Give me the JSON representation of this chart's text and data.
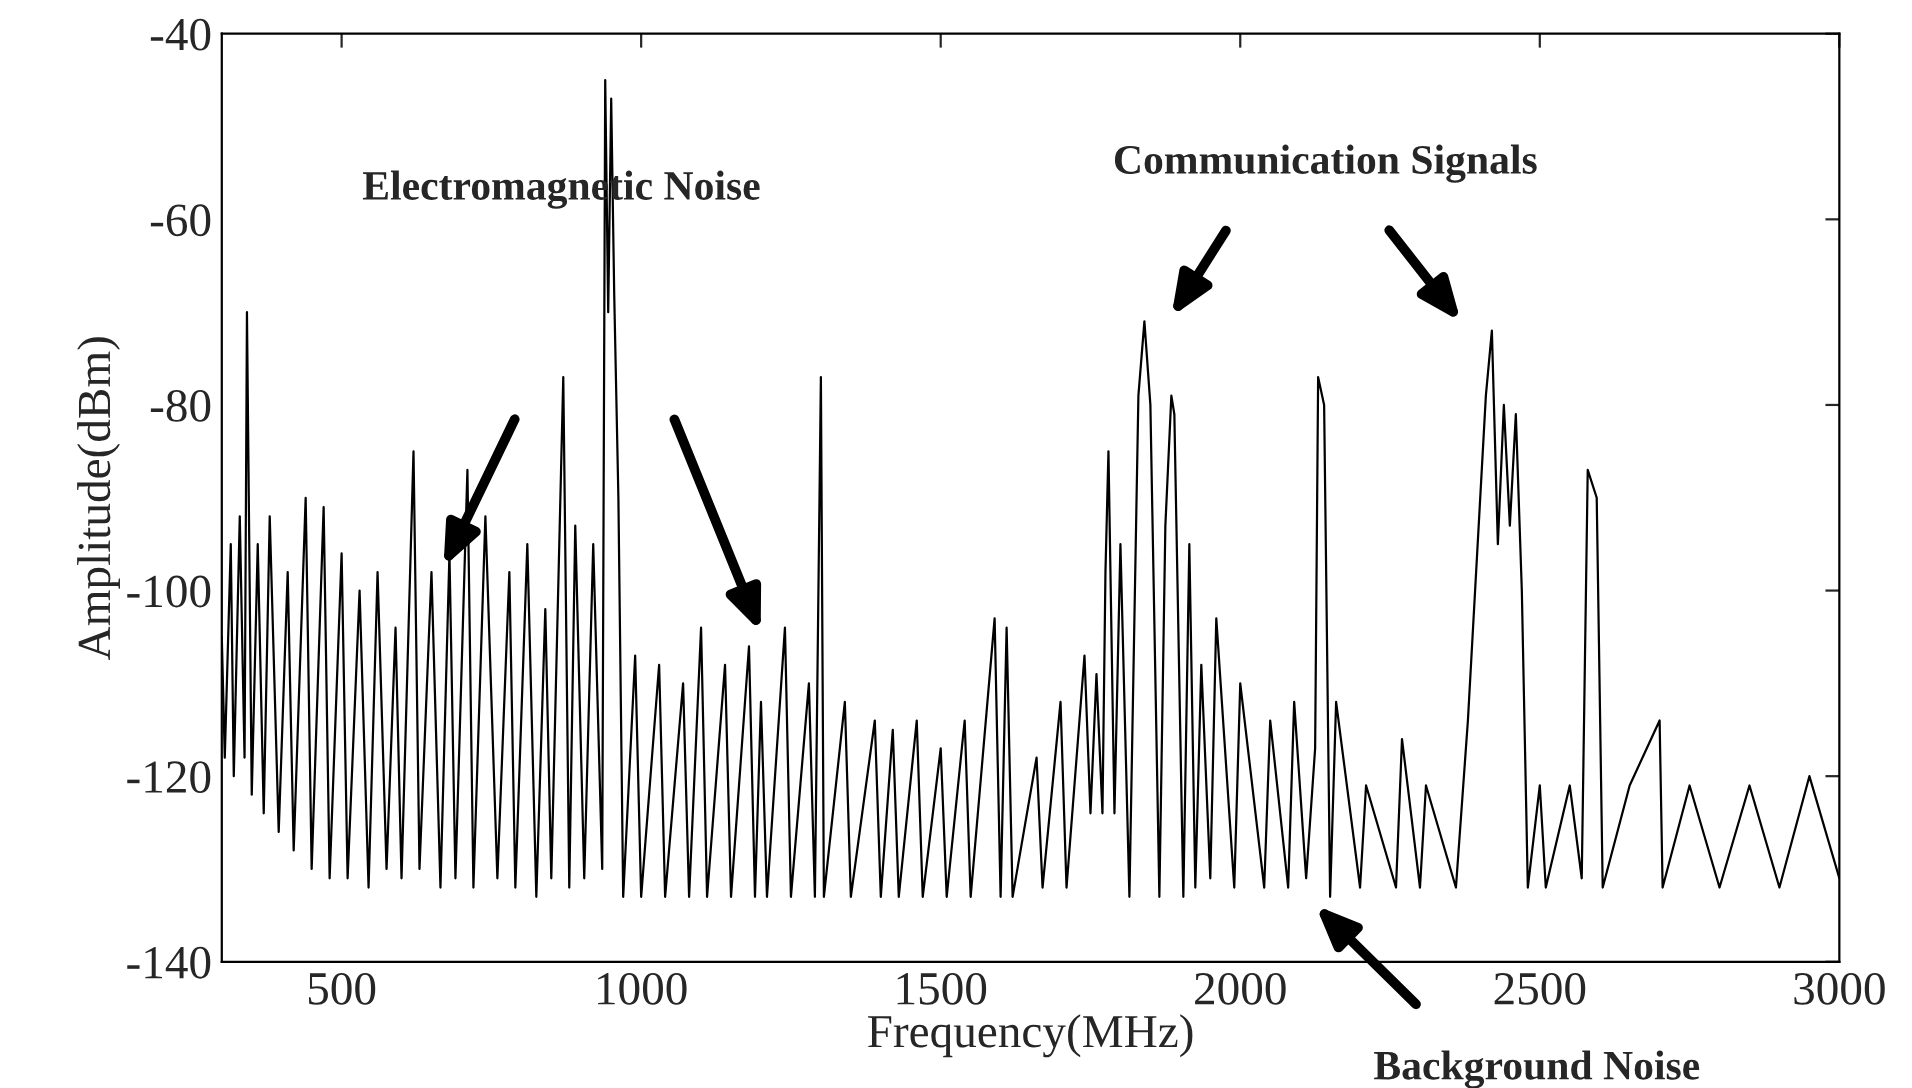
{
  "chart_data": {
    "type": "line",
    "xlabel": "Frequency(MHz)",
    "ylabel": "Amplitude(dBm)",
    "xlim": [
      300,
      3000
    ],
    "xticks": [
      500,
      1000,
      1500,
      2000,
      2500,
      3000
    ],
    "ylim": [
      -140,
      -40
    ],
    "yticks": [
      -140,
      -120,
      -100,
      -80,
      -60,
      -40
    ],
    "grid": false,
    "legend": false,
    "annotations": [
      "Electromagnetic Noise",
      "Communication Signals",
      "Background Noise"
    ],
    "series": [
      {
        "color": "#000000",
        "x": [
          300,
          305,
          315,
          320,
          330,
          338,
          342,
          350,
          360,
          370,
          380,
          395,
          410,
          420,
          440,
          450,
          470,
          480,
          500,
          510,
          530,
          545,
          560,
          575,
          590,
          600,
          620,
          630,
          650,
          665,
          680,
          690,
          710,
          720,
          740,
          760,
          780,
          790,
          810,
          825,
          840,
          850,
          870,
          880,
          890,
          905,
          920,
          935,
          940,
          945,
          950,
          955,
          962,
          970,
          990,
          1000,
          1030,
          1040,
          1070,
          1080,
          1100,
          1110,
          1140,
          1150,
          1180,
          1190,
          1200,
          1210,
          1240,
          1250,
          1280,
          1290,
          1300,
          1305,
          1340,
          1350,
          1390,
          1400,
          1420,
          1430,
          1460,
          1470,
          1500,
          1510,
          1540,
          1550,
          1590,
          1600,
          1610,
          1620,
          1660,
          1670,
          1700,
          1710,
          1740,
          1750,
          1760,
          1770,
          1775,
          1780,
          1790,
          1800,
          1815,
          1830,
          1840,
          1850,
          1865,
          1875,
          1885,
          1890,
          1905,
          1915,
          1925,
          1935,
          1950,
          1960,
          1990,
          2000,
          2040,
          2050,
          2080,
          2090,
          2110,
          2125,
          2130,
          2140,
          2150,
          2160,
          2200,
          2210,
          2260,
          2270,
          2300,
          2310,
          2360,
          2380,
          2410,
          2420,
          2430,
          2440,
          2450,
          2460,
          2470,
          2480,
          2500,
          2510,
          2550,
          2570,
          2580,
          2595,
          2605,
          2650,
          2700,
          2705,
          2750,
          2800,
          2850,
          2900,
          2950,
          3000
        ],
        "values": [
          -105,
          -118,
          -95,
          -120,
          -92,
          -118,
          -70,
          -122,
          -95,
          -124,
          -92,
          -126,
          -98,
          -128,
          -90,
          -130,
          -91,
          -131,
          -96,
          -131,
          -100,
          -132,
          -98,
          -130,
          -104,
          -131,
          -85,
          -130,
          -98,
          -132,
          -96,
          -131,
          -87,
          -132,
          -92,
          -131,
          -98,
          -132,
          -95,
          -133,
          -102,
          -131,
          -77,
          -132,
          -93,
          -131,
          -95,
          -130,
          -45,
          -70,
          -47,
          -68,
          -90,
          -133,
          -107,
          -133,
          -108,
          -133,
          -110,
          -133,
          -104,
          -133,
          -108,
          -133,
          -106,
          -133,
          -112,
          -133,
          -104,
          -133,
          -110,
          -133,
          -77,
          -133,
          -112,
          -133,
          -114,
          -133,
          -115,
          -133,
          -114,
          -133,
          -117,
          -133,
          -114,
          -133,
          -103,
          -133,
          -104,
          -133,
          -118,
          -132,
          -112,
          -132,
          -107,
          -124,
          -109,
          -124,
          -98,
          -85,
          -124,
          -95,
          -133,
          -79,
          -71,
          -80,
          -133,
          -93,
          -79,
          -81,
          -133,
          -95,
          -132,
          -108,
          -131,
          -103,
          -132,
          -110,
          -132,
          -114,
          -132,
          -112,
          -131,
          -117,
          -77,
          -80,
          -133,
          -112,
          -132,
          -121,
          -132,
          -116,
          -132,
          -121,
          -132,
          -114,
          -79,
          -72,
          -95,
          -80,
          -93,
          -81,
          -100,
          -132,
          -121,
          -132,
          -121,
          -131,
          -87,
          -90,
          -132,
          -121,
          -114,
          -132,
          -121,
          -132,
          -121,
          -132,
          -120,
          -131
        ]
      }
    ]
  }
}
